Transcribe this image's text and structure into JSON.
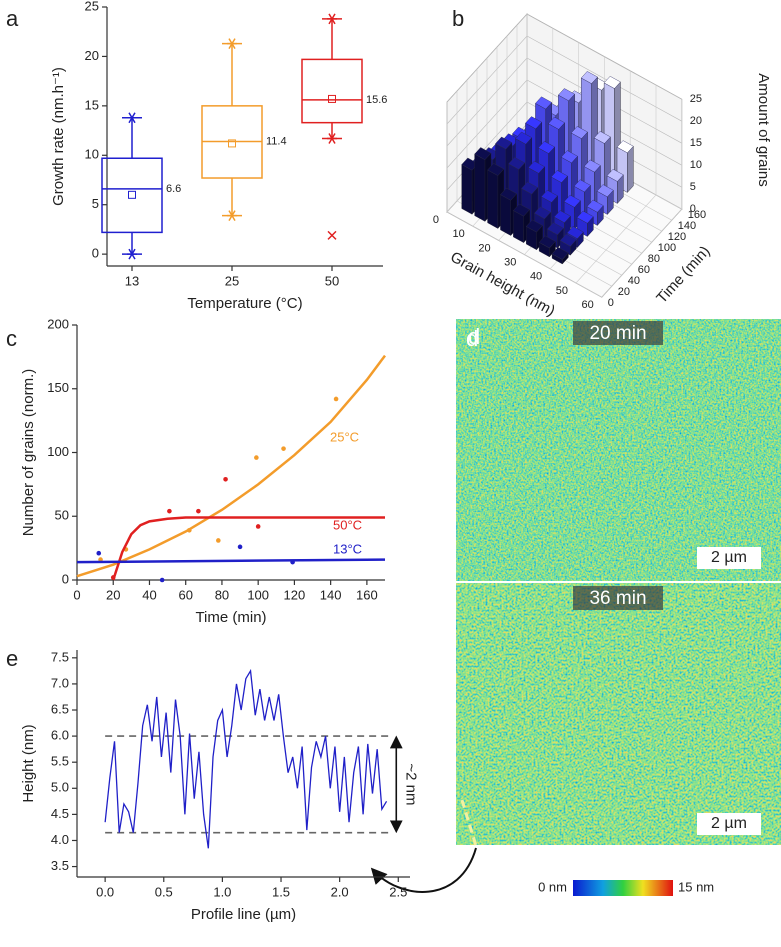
{
  "chart_data": [
    {
      "type": "box",
      "panel": "a",
      "ylabel": "Growth rate (nm.h⁻¹)",
      "xlabel": "Temperature (°C)",
      "categories": [
        "13",
        "25",
        "50"
      ],
      "colors": [
        "#1f1fcf",
        "#f39c2b",
        "#e02020"
      ],
      "whisker_low": [
        0,
        3.9,
        11.7
      ],
      "q1": [
        2.2,
        7.7,
        13.3
      ],
      "median": [
        6.6,
        11.4,
        15.6
      ],
      "q3": [
        9.7,
        15.0,
        19.7
      ],
      "whisker_high": [
        13.8,
        21.3,
        23.8
      ],
      "mean": [
        6.0,
        11.2,
        15.7
      ],
      "outliers": [
        [],
        [],
        [
          1.9
        ]
      ],
      "ylim": [
        -1.2,
        25
      ],
      "yticks": [
        0,
        5,
        10,
        15,
        20,
        25
      ]
    },
    {
      "type": "bar3d",
      "panel": "b",
      "xlabel": "Grain height (nm)",
      "ylabel": "Time (min)",
      "zlabel": "Amount of grains",
      "x": [
        5,
        10,
        15,
        20,
        25,
        30,
        35,
        40
      ],
      "y": [
        20,
        36,
        50,
        70,
        90,
        110,
        130,
        150
      ],
      "colors": [
        "#0a0a3c",
        "#14146e",
        "#1e1ea8",
        "#2a2ad2",
        "#4646e6",
        "#6a6aee",
        "#9494f0",
        "#c4c4f4"
      ],
      "values": [
        [
          10,
          14,
          12,
          8,
          6,
          4,
          2,
          1
        ],
        [
          8,
          12,
          16,
          13,
          9,
          5,
          3,
          2
        ],
        [
          6,
          11,
          15,
          17,
          12,
          7,
          4,
          2
        ],
        [
          5,
          9,
          14,
          18,
          14,
          9,
          5,
          3
        ],
        [
          4,
          8,
          12,
          20,
          17,
          11,
          6,
          3
        ],
        [
          3,
          7,
          11,
          16,
          21,
          14,
          8,
          4
        ],
        [
          2,
          6,
          10,
          14,
          18,
          24,
          12,
          5
        ],
        [
          2,
          5,
          8,
          12,
          16,
          20,
          22,
          9
        ]
      ],
      "xlim": [
        0,
        60
      ],
      "xticks": [
        0,
        10,
        20,
        30,
        40,
        50,
        60
      ],
      "ylim": [
        0,
        160
      ],
      "yticks": [
        0,
        20,
        40,
        60,
        80,
        100,
        120,
        140,
        160
      ],
      "zlim": [
        0,
        25
      ],
      "zticks": [
        0,
        5,
        10,
        15,
        20,
        25
      ]
    },
    {
      "type": "scatter",
      "panel": "c",
      "xlabel": "Time (min)",
      "ylabel": "Number of grains (norm.)",
      "series": [
        {
          "name": "25°C",
          "color": "#f39c2b",
          "x": [
            13,
            27,
            62,
            78,
            99,
            114,
            143
          ],
          "values": [
            16,
            24,
            39,
            31,
            96,
            103,
            142
          ],
          "fit_x": [
            0,
            20,
            40,
            60,
            80,
            100,
            120,
            140,
            160,
            170
          ],
          "fit_values": [
            3,
            12,
            24,
            38,
            55,
            75,
            98,
            124,
            157,
            176
          ]
        },
        {
          "name": "50°C",
          "color": "#e02020",
          "x": [
            20,
            51,
            67,
            82,
            100
          ],
          "values": [
            2,
            54,
            54,
            79,
            42
          ],
          "fit_x": [
            20,
            25,
            30,
            35,
            40,
            50,
            60,
            80,
            100,
            120,
            140,
            170
          ],
          "fit_values": [
            0,
            22,
            36,
            43,
            46,
            48,
            49,
            49,
            49,
            49,
            49,
            49
          ]
        },
        {
          "name": "13°C",
          "color": "#2020c8",
          "x": [
            12,
            47,
            90,
            119
          ],
          "values": [
            21,
            0,
            26,
            14
          ],
          "fit_x": [
            0,
            170
          ],
          "fit_values": [
            14,
            16
          ]
        }
      ],
      "xlim": [
        0,
        170
      ],
      "xticks": [
        0,
        20,
        40,
        60,
        80,
        100,
        120,
        140,
        160
      ],
      "ylim": [
        0,
        200
      ],
      "yticks": [
        0,
        50,
        100,
        150,
        200
      ]
    },
    {
      "type": "line",
      "panel": "e",
      "xlabel": "Profile line (µm)",
      "ylabel": "Height (nm)",
      "annotation": "~2 nm",
      "color": "#2020c8",
      "x": [
        0,
        0.04,
        0.08,
        0.12,
        0.16,
        0.2,
        0.24,
        0.28,
        0.32,
        0.36,
        0.4,
        0.44,
        0.48,
        0.52,
        0.56,
        0.6,
        0.64,
        0.68,
        0.72,
        0.76,
        0.8,
        0.84,
        0.88,
        0.92,
        0.96,
        1.0,
        1.04,
        1.08,
        1.12,
        1.16,
        1.2,
        1.24,
        1.28,
        1.32,
        1.36,
        1.4,
        1.44,
        1.48,
        1.52,
        1.56,
        1.6,
        1.64,
        1.68,
        1.72,
        1.76,
        1.8,
        1.84,
        1.88,
        1.92,
        1.96,
        2.0,
        2.04,
        2.08,
        2.12,
        2.16,
        2.2,
        2.24,
        2.28,
        2.32,
        2.36,
        2.4
      ],
      "values": [
        4.35,
        5.2,
        5.9,
        4.15,
        4.7,
        4.55,
        4.15,
        5.1,
        6.2,
        6.6,
        5.9,
        6.75,
        5.6,
        6.45,
        5.3,
        6.7,
        6.0,
        4.5,
        6.05,
        4.8,
        5.7,
        4.5,
        3.85,
        5.6,
        6.3,
        6.5,
        5.6,
        6.2,
        7.0,
        6.5,
        7.1,
        7.25,
        6.4,
        6.9,
        6.3,
        6.75,
        6.3,
        6.8,
        6.0,
        5.3,
        5.6,
        5.0,
        5.8,
        4.2,
        5.4,
        5.9,
        5.6,
        6.0,
        5.0,
        5.8,
        4.55,
        5.6,
        4.35,
        5.3,
        5.8,
        4.5,
        5.85,
        4.9,
        5.75,
        4.6,
        4.75
      ],
      "hlines": [
        6.0,
        4.15
      ],
      "xlim": [
        -0.24,
        2.6
      ],
      "xticks": [
        {
          "value": 0,
          "label": "0.0"
        },
        0.5,
        {
          "value": 1,
          "label": "1.0"
        },
        1.5,
        {
          "value": 2,
          "label": "2.0"
        },
        2.5
      ],
      "ylim": [
        3.3,
        7.65
      ],
      "yticks": [
        3.5,
        {
          "value": 4,
          "label": "4.0"
        },
        4.5,
        {
          "value": 5,
          "label": "5.0"
        },
        5.5,
        {
          "value": 6,
          "label": "6.0"
        },
        6.5,
        {
          "value": 7,
          "label": "7.0"
        },
        7.5
      ]
    }
  ],
  "image_panel": {
    "panel": "d",
    "frames": [
      {
        "label": "20 min",
        "scale": "2 µm"
      },
      {
        "label": "36 min",
        "scale": "2 µm"
      }
    ],
    "colorbar": {
      "min_label": "0 nm",
      "max_label": "15 nm"
    }
  }
}
